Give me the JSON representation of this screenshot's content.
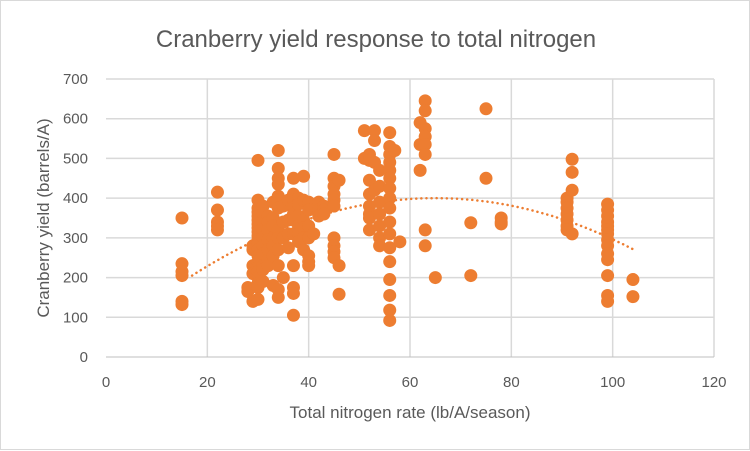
{
  "chart_data": {
    "type": "scatter",
    "title": "Cranberry  yield response to total nitrogen",
    "xlabel": "Total nitrogen rate (lb/A/season)",
    "ylabel": "Cranberry yield (barrels/A)",
    "xlim": [
      0,
      120
    ],
    "ylim": [
      0,
      700
    ],
    "xticks": [
      0,
      20,
      40,
      60,
      80,
      100,
      120
    ],
    "yticks": [
      0,
      100,
      200,
      300,
      400,
      500,
      600,
      700
    ],
    "grid": true,
    "legend": "none",
    "marker_color": "#ED7D31",
    "trendline": {
      "type": "polynomial-2",
      "style": "dotted",
      "vertex_x": 65,
      "vertex_y": 400,
      "a": -0.0846,
      "x_range": [
        17,
        104
      ]
    },
    "columns": [
      {
        "x": 15,
        "y": [
          350,
          235,
          215,
          205,
          140,
          132
        ]
      },
      {
        "x": 22,
        "y": [
          415,
          370,
          340,
          330,
          320
        ]
      },
      {
        "x": 28,
        "y": [
          175,
          165
        ]
      },
      {
        "x": 29,
        "y": [
          280,
          270,
          230,
          210,
          140
        ]
      },
      {
        "x": 30,
        "y": [
          495,
          395,
          375,
          365,
          355,
          345,
          335,
          325,
          315,
          305,
          295,
          285,
          270,
          255,
          240,
          225,
          215,
          200,
          185,
          175,
          145
        ]
      },
      {
        "x": 31,
        "y": [
          380,
          360,
          340,
          320,
          300,
          280,
          260,
          230,
          220,
          190
        ]
      },
      {
        "x": 32,
        "y": [
          355,
          340,
          320,
          295,
          270,
          245,
          230
        ]
      },
      {
        "x": 33,
        "y": [
          390,
          350,
          330,
          300,
          280,
          255,
          180
        ]
      },
      {
        "x": 34,
        "y": [
          520,
          475,
          450,
          435,
          405,
          395,
          375,
          320,
          300,
          270,
          230,
          170,
          150
        ]
      },
      {
        "x": 35,
        "y": [
          380,
          340,
          300,
          200
        ]
      },
      {
        "x": 36,
        "y": [
          395,
          345,
          310,
          275
        ]
      },
      {
        "x": 37,
        "y": [
          450,
          410,
          395,
          375,
          360,
          345,
          310,
          230,
          175,
          160,
          105
        ]
      },
      {
        "x": 38,
        "y": [
          400,
          385,
          355,
          330,
          310,
          290
        ]
      },
      {
        "x": 39,
        "y": [
          455,
          395,
          345,
          325,
          300,
          270
        ]
      },
      {
        "x": 40,
        "y": [
          390,
          370,
          330,
          300,
          255,
          240,
          230
        ]
      },
      {
        "x": 41,
        "y": [
          310
        ]
      },
      {
        "x": 42,
        "y": [
          390,
          370,
          355
        ]
      },
      {
        "x": 43,
        "y": [
          380,
          370,
          360
        ]
      },
      {
        "x": 45,
        "y": [
          510,
          450,
          430,
          410,
          395,
          380,
          300,
          280,
          265,
          250
        ]
      },
      {
        "x": 46,
        "y": [
          445,
          230,
          158
        ]
      },
      {
        "x": 51,
        "y": [
          570,
          500
        ]
      },
      {
        "x": 52,
        "y": [
          510,
          495,
          445,
          410,
          380,
          360,
          350,
          320
        ]
      },
      {
        "x": 53,
        "y": [
          570,
          545,
          490,
          420
        ]
      },
      {
        "x": 54,
        "y": [
          470,
          430,
          390,
          360,
          330,
          300,
          280
        ]
      },
      {
        "x": 56,
        "y": [
          565,
          530,
          510,
          490,
          470,
          450,
          425,
          400,
          375,
          340,
          310,
          275,
          240,
          195,
          155,
          118,
          92
        ]
      },
      {
        "x": 57,
        "y": [
          520
        ]
      },
      {
        "x": 58,
        "y": [
          290
        ]
      },
      {
        "x": 62,
        "y": [
          590,
          535,
          470
        ]
      },
      {
        "x": 63,
        "y": [
          645,
          620,
          575,
          555,
          535,
          510,
          320,
          280
        ]
      },
      {
        "x": 65,
        "y": [
          200
        ]
      },
      {
        "x": 72,
        "y": [
          338,
          205
        ]
      },
      {
        "x": 75,
        "y": [
          625,
          450
        ]
      },
      {
        "x": 78,
        "y": [
          350,
          340,
          335
        ]
      },
      {
        "x": 91,
        "y": [
          400,
          390,
          375,
          360,
          345,
          330,
          320
        ]
      },
      {
        "x": 92,
        "y": [
          498,
          465,
          420,
          310
        ]
      },
      {
        "x": 99,
        "y": [
          385,
          370,
          355,
          340,
          330,
          320,
          310,
          295,
          280,
          260,
          245,
          205,
          155,
          140
        ]
      },
      {
        "x": 104,
        "y": [
          195,
          152
        ]
      }
    ]
  }
}
